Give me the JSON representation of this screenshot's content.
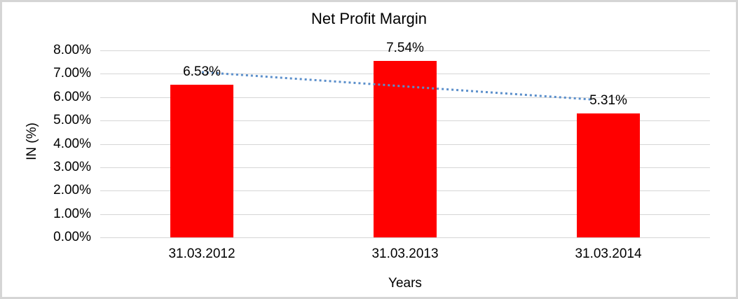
{
  "chart_data": {
    "type": "bar",
    "title": "Net Profit Margin",
    "categories": [
      "31.03.2012",
      "31.03.2013",
      "31.03.2014"
    ],
    "values": [
      6.53,
      7.54,
      5.31
    ],
    "data_labels": [
      "6.53%",
      "7.54%",
      "5.31%"
    ],
    "xlabel": "Years",
    "ylabel": "IN (%)",
    "ylim": [
      0,
      8
    ],
    "y_tick_step": 1,
    "y_tick_labels": [
      "0.00%",
      "1.00%",
      "2.00%",
      "3.00%",
      "4.00%",
      "5.00%",
      "6.00%",
      "7.00%",
      "8.00%"
    ],
    "grid": true,
    "legend": "none",
    "bar_color": "#ff0000",
    "gridline_color": "#d6d6d6",
    "frame_border_color": "#d5d5d5",
    "text_color": "#000000",
    "trendline": {
      "type": "linear",
      "style": "dotted",
      "color": "#5b8fcb",
      "start_value": 7.07,
      "end_value": 5.85
    }
  }
}
